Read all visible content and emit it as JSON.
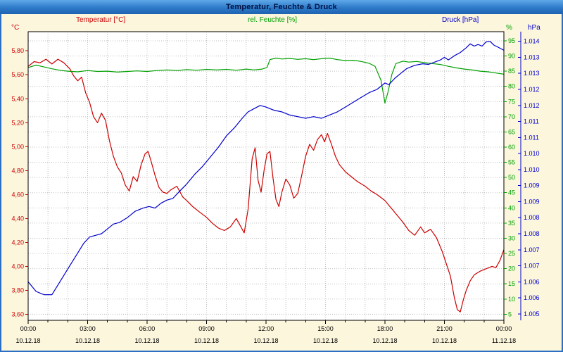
{
  "window": {
    "title": "Temperatur, Feuchte & Druck",
    "titlebar_color": "#2d7ac9",
    "background_color": "#fcf6dd",
    "border_color": "#2b6fc4"
  },
  "chart_data": {
    "type": "line",
    "title": "Temperatur, Feuchte & Druck",
    "grid": {
      "vertical_every_hours": 1,
      "horizontal_every_percent": 5,
      "style": "dotted"
    },
    "x_axis": {
      "unit": "time",
      "range_hours": [
        0,
        24
      ],
      "tick_hours": [
        0,
        3,
        6,
        9,
        12,
        15,
        18,
        21,
        24
      ],
      "tick_labels": [
        "00:00",
        "03:00",
        "06:00",
        "09:00",
        "12:00",
        "15:00",
        "18:00",
        "21:00",
        "00:00"
      ],
      "date_labels": [
        "10.12.18",
        "10.12.18",
        "10.12.18",
        "10.12.18",
        "10.12.18",
        "10.12.18",
        "10.12.18",
        "10.12.18",
        "11.12.18"
      ]
    },
    "axes": {
      "left": {
        "unit": "°C",
        "color": "#cc0000",
        "min": 3.55,
        "max": 5.96,
        "tick_values": [
          5.8,
          5.6,
          5.4,
          5.2,
          5.0,
          4.8,
          4.6,
          4.4,
          4.2,
          4.0,
          3.8,
          3.6
        ],
        "tick_labels": [
          "5,80",
          "5,60",
          "5,40",
          "5,20",
          "5,00",
          "4,80",
          "4,60",
          "4,40",
          "4,20",
          "4,00",
          "3,80",
          "3,60"
        ]
      },
      "right1": {
        "unit": "%",
        "color": "#00a000",
        "min": 3,
        "max": 98,
        "tick_values": [
          95,
          90,
          85,
          80,
          75,
          70,
          65,
          60,
          55,
          50,
          45,
          40,
          35,
          30,
          25,
          20,
          15,
          10,
          5
        ],
        "tick_labels": [
          "95",
          "90",
          "85",
          "80",
          "75",
          "70",
          "65",
          "60",
          "55",
          "50",
          "45",
          "40",
          "35",
          "30",
          "25",
          "20",
          "15",
          "10",
          "5"
        ]
      },
      "right2": {
        "unit": "hPa",
        "color": "#0000cc",
        "min": 1005.3,
        "max": 1014.3,
        "tick_values": [
          1014,
          1013.5,
          1013,
          1012.5,
          1012,
          1011.5,
          1011,
          1010.5,
          1010,
          1009.5,
          1009,
          1008.5,
          1008,
          1007.5,
          1007,
          1006.5,
          1006,
          1005.5
        ],
        "tick_labels": [
          "1.014",
          "1.013",
          "1.013",
          "1.012",
          "1.012",
          "1.011",
          "1.011",
          "1.010",
          "1.010",
          "1.009",
          "1.009",
          "1.008",
          "1.008",
          "1.007",
          "1.007",
          "1.006",
          "1.006",
          "1.005"
        ]
      }
    },
    "series": [
      {
        "id": "temperature",
        "name": "Temperatur [°C]",
        "color": "#cc0000",
        "axis": "left",
        "points": [
          [
            0,
            5.67
          ],
          [
            0.3,
            5.71
          ],
          [
            0.6,
            5.7
          ],
          [
            0.9,
            5.73
          ],
          [
            1.2,
            5.69
          ],
          [
            1.5,
            5.73
          ],
          [
            1.8,
            5.7
          ],
          [
            2.1,
            5.65
          ],
          [
            2.3,
            5.59
          ],
          [
            2.5,
            5.55
          ],
          [
            2.7,
            5.58
          ],
          [
            2.9,
            5.45
          ],
          [
            3.1,
            5.37
          ],
          [
            3.3,
            5.25
          ],
          [
            3.5,
            5.2
          ],
          [
            3.7,
            5.28
          ],
          [
            3.9,
            5.22
          ],
          [
            4.1,
            5.05
          ],
          [
            4.3,
            4.92
          ],
          [
            4.5,
            4.83
          ],
          [
            4.7,
            4.78
          ],
          [
            4.9,
            4.68
          ],
          [
            5.1,
            4.63
          ],
          [
            5.3,
            4.75
          ],
          [
            5.5,
            4.71
          ],
          [
            5.7,
            4.85
          ],
          [
            5.9,
            4.94
          ],
          [
            6.05,
            4.96
          ],
          [
            6.2,
            4.88
          ],
          [
            6.4,
            4.76
          ],
          [
            6.6,
            4.66
          ],
          [
            6.8,
            4.62
          ],
          [
            7.0,
            4.61
          ],
          [
            7.2,
            4.64
          ],
          [
            7.5,
            4.67
          ],
          [
            7.8,
            4.58
          ],
          [
            8.0,
            4.55
          ],
          [
            8.3,
            4.5
          ],
          [
            8.6,
            4.46
          ],
          [
            9.0,
            4.41
          ],
          [
            9.3,
            4.36
          ],
          [
            9.6,
            4.32
          ],
          [
            9.9,
            4.3
          ],
          [
            10.2,
            4.33
          ],
          [
            10.5,
            4.4
          ],
          [
            10.7,
            4.34
          ],
          [
            10.9,
            4.28
          ],
          [
            11.1,
            4.48
          ],
          [
            11.3,
            4.9
          ],
          [
            11.45,
            4.99
          ],
          [
            11.6,
            4.72
          ],
          [
            11.75,
            4.62
          ],
          [
            11.9,
            4.8
          ],
          [
            12.05,
            4.94
          ],
          [
            12.2,
            4.96
          ],
          [
            12.35,
            4.74
          ],
          [
            12.5,
            4.56
          ],
          [
            12.65,
            4.5
          ],
          [
            12.8,
            4.62
          ],
          [
            13.0,
            4.73
          ],
          [
            13.2,
            4.68
          ],
          [
            13.4,
            4.57
          ],
          [
            13.6,
            4.61
          ],
          [
            13.8,
            4.76
          ],
          [
            14.0,
            4.92
          ],
          [
            14.2,
            5.02
          ],
          [
            14.4,
            4.97
          ],
          [
            14.6,
            5.06
          ],
          [
            14.8,
            5.1
          ],
          [
            14.95,
            5.04
          ],
          [
            15.1,
            5.11
          ],
          [
            15.3,
            5.02
          ],
          [
            15.5,
            4.92
          ],
          [
            15.7,
            4.85
          ],
          [
            16.0,
            4.79
          ],
          [
            16.3,
            4.75
          ],
          [
            16.6,
            4.71
          ],
          [
            17.0,
            4.67
          ],
          [
            17.3,
            4.63
          ],
          [
            17.6,
            4.6
          ],
          [
            18.0,
            4.55
          ],
          [
            18.3,
            4.49
          ],
          [
            18.6,
            4.43
          ],
          [
            18.9,
            4.37
          ],
          [
            19.2,
            4.3
          ],
          [
            19.5,
            4.26
          ],
          [
            19.8,
            4.33
          ],
          [
            20.0,
            4.28
          ],
          [
            20.3,
            4.31
          ],
          [
            20.6,
            4.24
          ],
          [
            20.9,
            4.12
          ],
          [
            21.1,
            4.02
          ],
          [
            21.3,
            3.92
          ],
          [
            21.5,
            3.74
          ],
          [
            21.65,
            3.64
          ],
          [
            21.8,
            3.62
          ],
          [
            21.95,
            3.72
          ],
          [
            22.1,
            3.8
          ],
          [
            22.3,
            3.88
          ],
          [
            22.5,
            3.93
          ],
          [
            22.8,
            3.96
          ],
          [
            23.1,
            3.98
          ],
          [
            23.4,
            4.0
          ],
          [
            23.6,
            3.99
          ],
          [
            23.8,
            4.05
          ],
          [
            24,
            4.14
          ]
        ]
      },
      {
        "id": "humidity",
        "name": "rel. Feuchte [%]",
        "color": "#00a000",
        "axis": "right1",
        "points": [
          [
            0,
            86.2
          ],
          [
            0.4,
            87.0
          ],
          [
            0.8,
            86.4
          ],
          [
            1.2,
            85.8
          ],
          [
            1.6,
            85.3
          ],
          [
            2.0,
            85.0
          ],
          [
            2.5,
            84.8
          ],
          [
            3.0,
            85.2
          ],
          [
            3.5,
            84.9
          ],
          [
            4.0,
            85.0
          ],
          [
            4.5,
            84.7
          ],
          [
            5.0,
            84.9
          ],
          [
            5.5,
            85.1
          ],
          [
            6.0,
            84.9
          ],
          [
            6.5,
            85.2
          ],
          [
            7.0,
            85.4
          ],
          [
            7.5,
            85.2
          ],
          [
            8.0,
            85.5
          ],
          [
            8.5,
            85.3
          ],
          [
            9.0,
            85.6
          ],
          [
            9.5,
            85.4
          ],
          [
            10.0,
            85.6
          ],
          [
            10.5,
            85.3
          ],
          [
            11.0,
            85.7
          ],
          [
            11.4,
            85.4
          ],
          [
            11.8,
            85.7
          ],
          [
            12.05,
            86.2
          ],
          [
            12.2,
            88.8
          ],
          [
            12.5,
            89.3
          ],
          [
            12.8,
            89.0
          ],
          [
            13.2,
            89.2
          ],
          [
            13.6,
            88.9
          ],
          [
            14.0,
            89.1
          ],
          [
            14.4,
            88.8
          ],
          [
            14.8,
            89.1
          ],
          [
            15.2,
            89.3
          ],
          [
            15.6,
            88.8
          ],
          [
            16.0,
            88.5
          ],
          [
            16.4,
            88.6
          ],
          [
            16.8,
            88.2
          ],
          [
            17.2,
            87.6
          ],
          [
            17.5,
            86.6
          ],
          [
            17.8,
            82.0
          ],
          [
            18.0,
            74.5
          ],
          [
            18.15,
            78.0
          ],
          [
            18.35,
            84.0
          ],
          [
            18.55,
            87.5
          ],
          [
            18.9,
            88.3
          ],
          [
            19.2,
            88.0
          ],
          [
            19.6,
            88.2
          ],
          [
            20.0,
            87.8
          ],
          [
            20.4,
            87.5
          ],
          [
            20.8,
            87.2
          ],
          [
            21.2,
            86.6
          ],
          [
            21.6,
            86.1
          ],
          [
            22.0,
            85.7
          ],
          [
            22.4,
            85.4
          ],
          [
            22.8,
            85.0
          ],
          [
            23.2,
            84.8
          ],
          [
            23.6,
            84.4
          ],
          [
            24,
            84.0
          ]
        ]
      },
      {
        "id": "pressure",
        "name": "Druck [hPa]",
        "color": "#0000cc",
        "axis": "right2",
        "points": [
          [
            0,
            1006.5
          ],
          [
            0.4,
            1006.2
          ],
          [
            0.8,
            1006.1
          ],
          [
            1.2,
            1006.1
          ],
          [
            1.6,
            1006.5
          ],
          [
            2.0,
            1006.9
          ],
          [
            2.4,
            1007.3
          ],
          [
            2.8,
            1007.7
          ],
          [
            3.1,
            1007.9
          ],
          [
            3.4,
            1007.95
          ],
          [
            3.7,
            1008.0
          ],
          [
            4.0,
            1008.15
          ],
          [
            4.3,
            1008.3
          ],
          [
            4.6,
            1008.35
          ],
          [
            5.0,
            1008.5
          ],
          [
            5.4,
            1008.7
          ],
          [
            5.8,
            1008.8
          ],
          [
            6.1,
            1008.85
          ],
          [
            6.4,
            1008.8
          ],
          [
            6.7,
            1008.95
          ],
          [
            7.0,
            1009.05
          ],
          [
            7.3,
            1009.1
          ],
          [
            7.6,
            1009.3
          ],
          [
            8.0,
            1009.55
          ],
          [
            8.4,
            1009.85
          ],
          [
            8.8,
            1010.1
          ],
          [
            9.2,
            1010.4
          ],
          [
            9.6,
            1010.7
          ],
          [
            10.0,
            1011.05
          ],
          [
            10.4,
            1011.3
          ],
          [
            10.8,
            1011.6
          ],
          [
            11.1,
            1011.8
          ],
          [
            11.4,
            1011.9
          ],
          [
            11.7,
            1012.0
          ],
          [
            12.0,
            1011.95
          ],
          [
            12.4,
            1011.85
          ],
          [
            12.8,
            1011.8
          ],
          [
            13.2,
            1011.7
          ],
          [
            13.6,
            1011.65
          ],
          [
            14.0,
            1011.6
          ],
          [
            14.4,
            1011.65
          ],
          [
            14.8,
            1011.6
          ],
          [
            15.2,
            1011.7
          ],
          [
            15.6,
            1011.8
          ],
          [
            16.0,
            1011.95
          ],
          [
            16.4,
            1012.1
          ],
          [
            16.8,
            1012.25
          ],
          [
            17.2,
            1012.4
          ],
          [
            17.6,
            1012.5
          ],
          [
            18.0,
            1012.7
          ],
          [
            18.2,
            1012.65
          ],
          [
            18.5,
            1012.85
          ],
          [
            18.8,
            1013.0
          ],
          [
            19.1,
            1013.15
          ],
          [
            19.5,
            1013.25
          ],
          [
            19.9,
            1013.3
          ],
          [
            20.2,
            1013.28
          ],
          [
            20.5,
            1013.35
          ],
          [
            20.8,
            1013.42
          ],
          [
            21.0,
            1013.5
          ],
          [
            21.2,
            1013.42
          ],
          [
            21.5,
            1013.55
          ],
          [
            21.8,
            1013.65
          ],
          [
            22.1,
            1013.8
          ],
          [
            22.3,
            1013.92
          ],
          [
            22.5,
            1013.85
          ],
          [
            22.7,
            1013.9
          ],
          [
            22.9,
            1013.85
          ],
          [
            23.1,
            1013.98
          ],
          [
            23.3,
            1014.0
          ],
          [
            23.5,
            1013.88
          ],
          [
            23.7,
            1013.82
          ],
          [
            24,
            1013.72
          ]
        ]
      }
    ]
  }
}
